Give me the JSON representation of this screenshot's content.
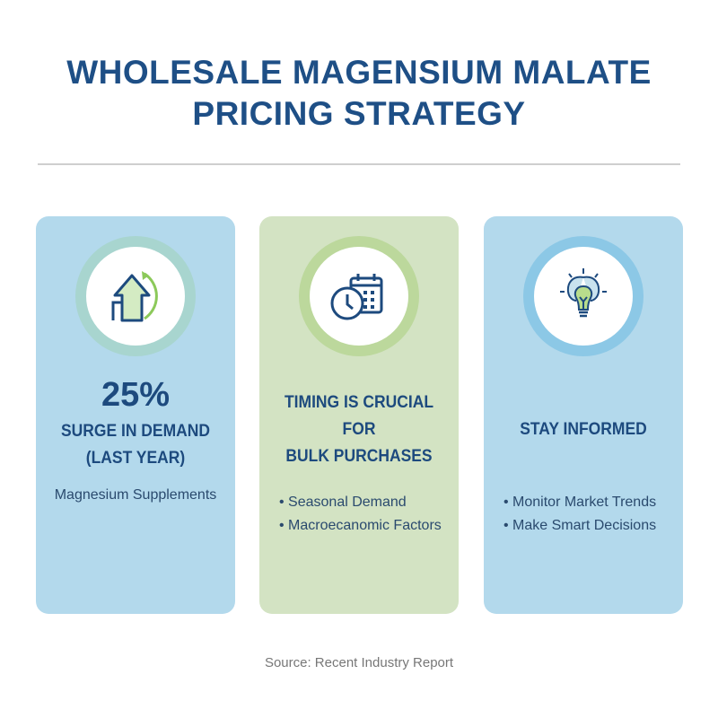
{
  "title": {
    "line1": "WHOLESALE MAGENSIUM MALATE",
    "line2": "PRICING STRATEGY"
  },
  "cards": [
    {
      "icon": "growth-arrow-icon",
      "stat": "25%",
      "heading": [
        "SURGE IN DEMAND",
        "(LAST YEAR)"
      ],
      "subtext": "Magnesium Supplements",
      "ring_color": "#a8d5cf"
    },
    {
      "icon": "clock-calendar-icon",
      "heading": [
        "TIMING IS CRUCIAL FOR",
        "BULK PURCHASES"
      ],
      "bullets": [
        "Seasonal Demand",
        "Macroecanomic Factors"
      ],
      "ring_color": "#bcd89c"
    },
    {
      "icon": "brain-lightbulb-icon",
      "heading": [
        "STAY INFORMED"
      ],
      "bullets": [
        "Monitor Market Trends",
        "Make Smart Decisions"
      ],
      "ring_color": "#8cc8e6"
    }
  ],
  "source": "Source: Recent Industry Report"
}
